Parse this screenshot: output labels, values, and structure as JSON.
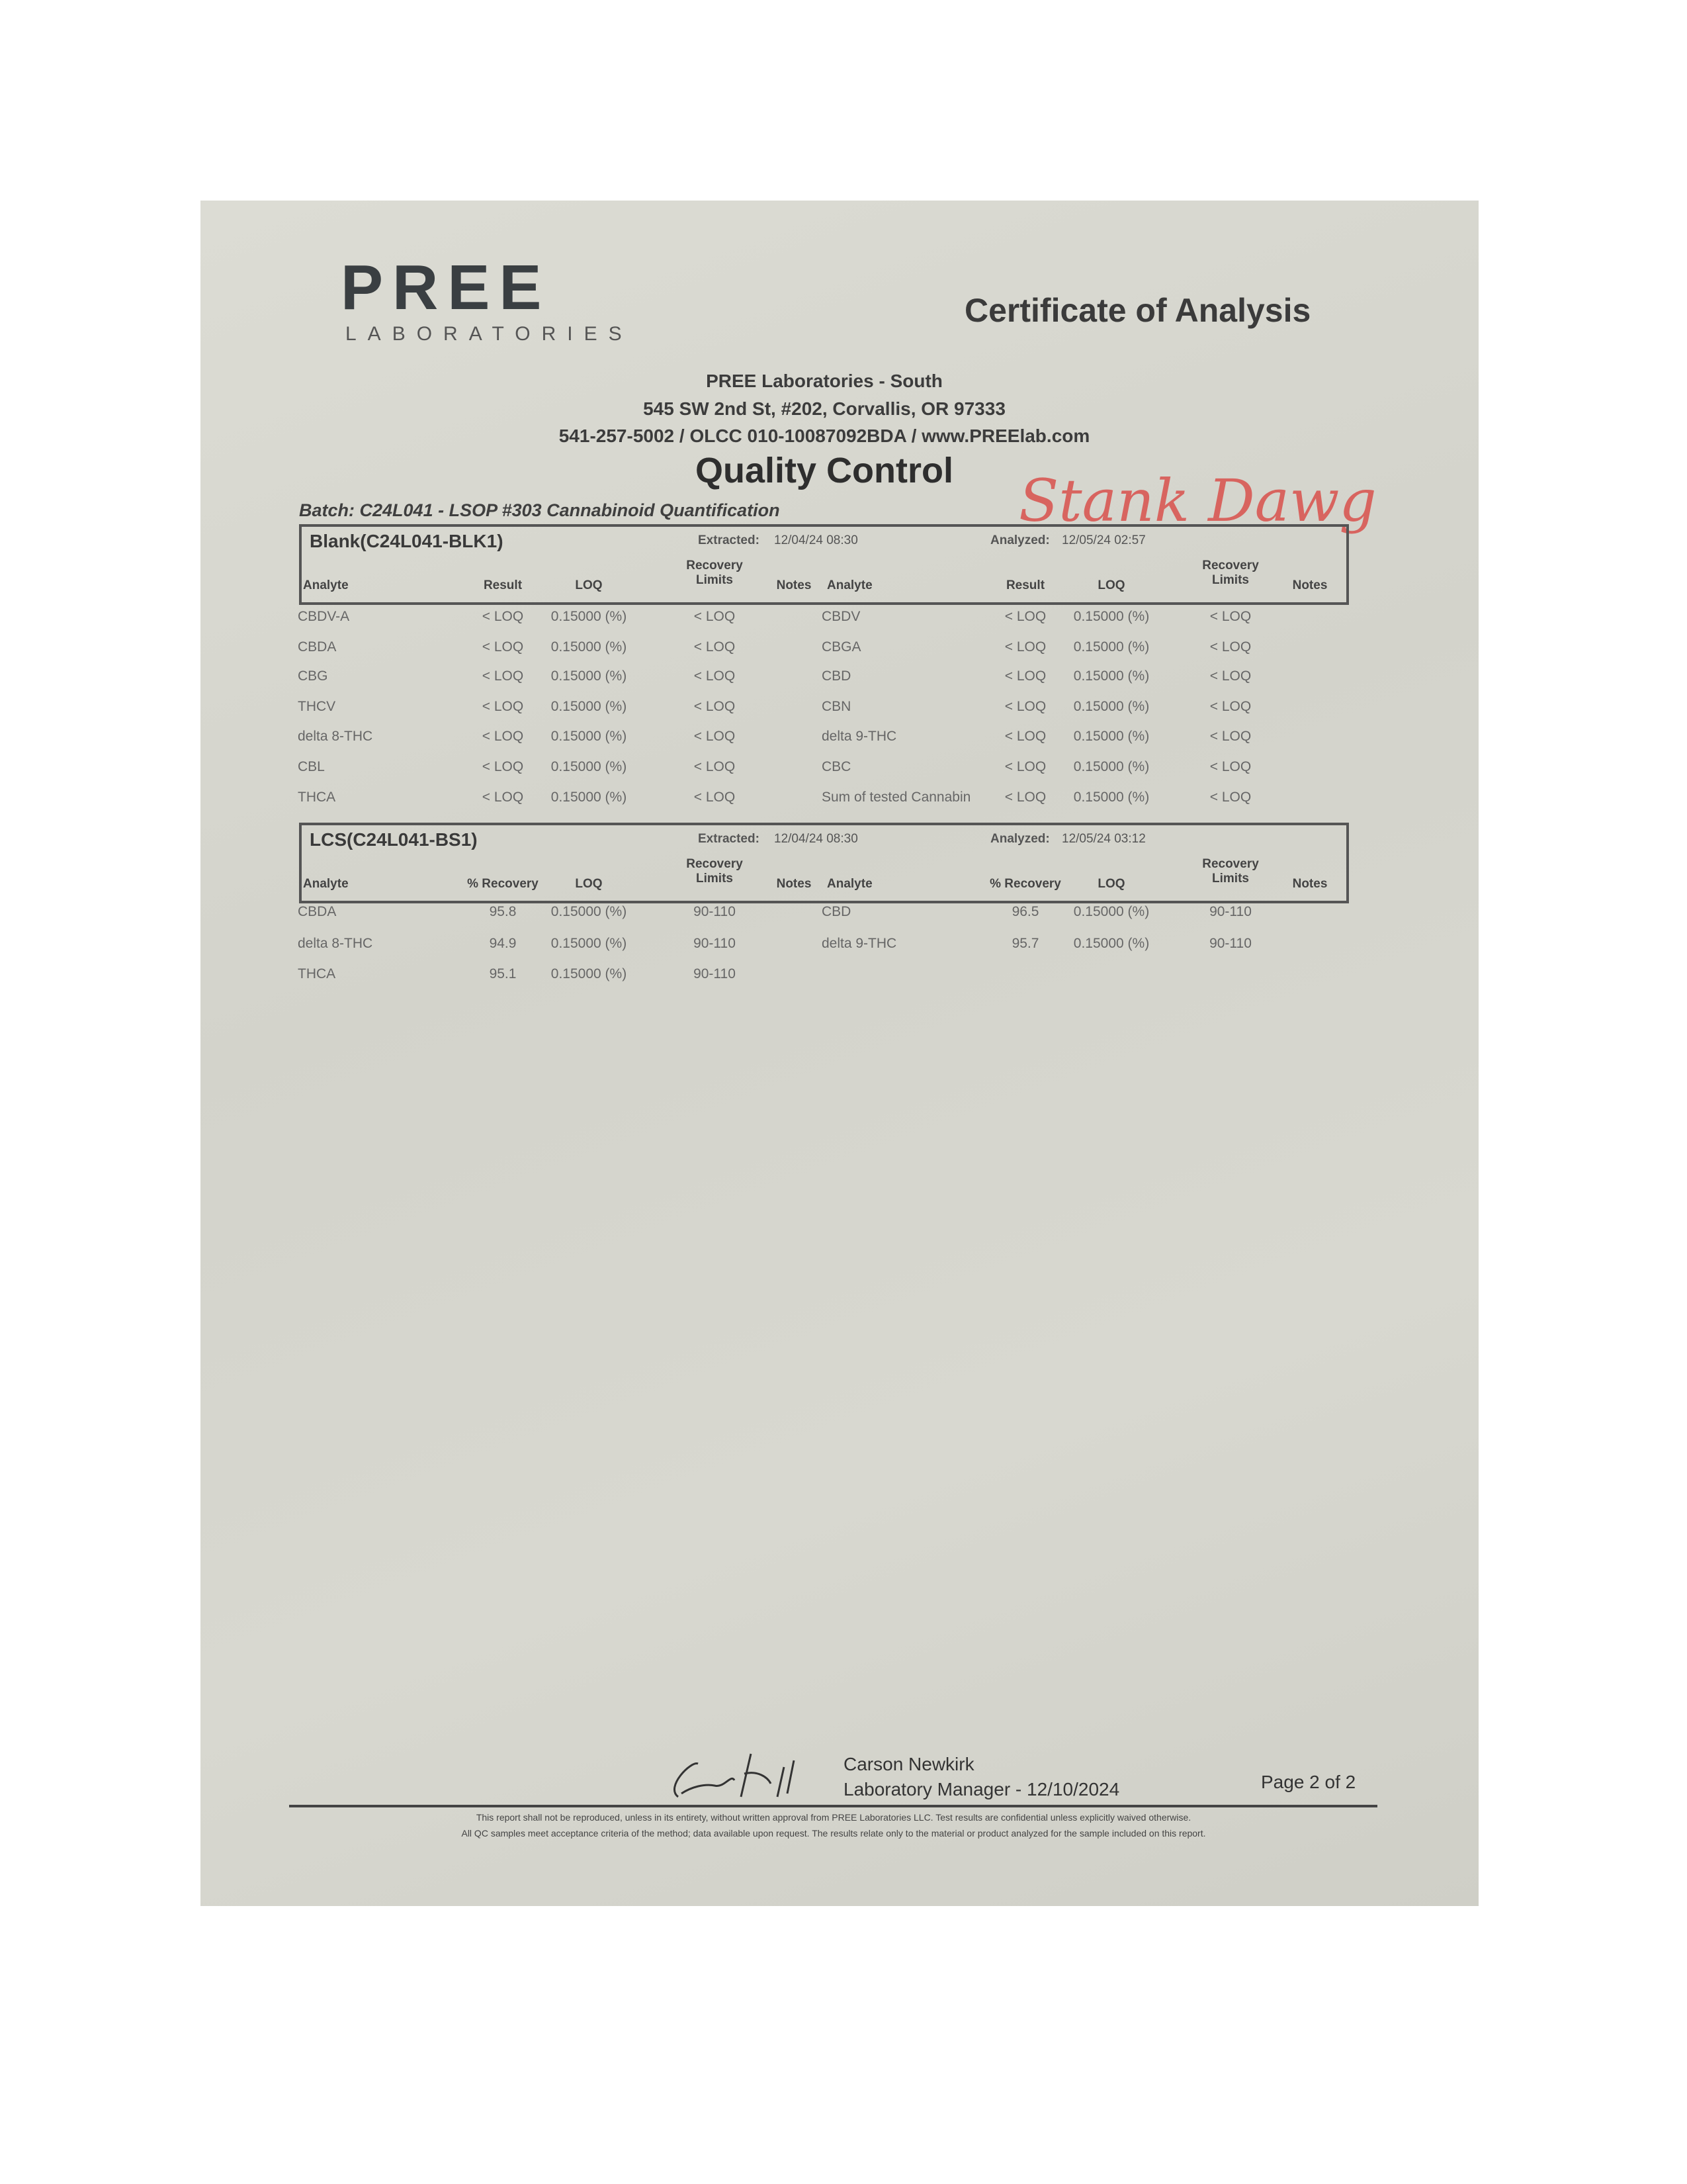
{
  "header": {
    "logo": "PREE",
    "logo_sub": "LABORATORIES",
    "doc_title": "Certificate of Analysis",
    "lab_name": "PREE Laboratories - South",
    "address": "545 SW 2nd St, #202, Corvallis, OR 97333",
    "contact": "541-257-5002 / OLCC 010-10087092BDA / www.PREElab.com",
    "section_title": "Quality Control",
    "batch": "Batch:  C24L041 - LSOP #303 Cannabinoid Quantification",
    "handwritten_note": "Stank Dawg"
  },
  "blank": {
    "name": "Blank(C24L041-BLK1)",
    "extracted": "Extracted:",
    "extracted_val": "12/04/24 08:30",
    "analyzed": "Analyzed:",
    "analyzed_val": "12/05/24 02:57",
    "headers": [
      "Analyte",
      "Result",
      "LOQ",
      "Recovery Limits",
      "Notes",
      "Analyte",
      "Result",
      "LOQ",
      "Recovery Limits",
      "Notes"
    ],
    "rows": [
      [
        "CBDV-A",
        "< LOQ",
        "0.15000 (%)",
        "< LOQ",
        "",
        "CBDV",
        "< LOQ",
        "0.15000 (%)",
        "< LOQ",
        ""
      ],
      [
        "CBDA",
        "< LOQ",
        "0.15000 (%)",
        "< LOQ",
        "",
        "CBGA",
        "< LOQ",
        "0.15000 (%)",
        "< LOQ",
        ""
      ],
      [
        "CBG",
        "< LOQ",
        "0.15000 (%)",
        "< LOQ",
        "",
        "CBD",
        "< LOQ",
        "0.15000 (%)",
        "< LOQ",
        ""
      ],
      [
        "THCV",
        "< LOQ",
        "0.15000 (%)",
        "< LOQ",
        "",
        "CBN",
        "< LOQ",
        "0.15000 (%)",
        "< LOQ",
        ""
      ],
      [
        "delta 8-THC",
        "< LOQ",
        "0.15000 (%)",
        "< LOQ",
        "",
        "delta 9-THC",
        "< LOQ",
        "0.15000 (%)",
        "< LOQ",
        ""
      ],
      [
        "CBL",
        "< LOQ",
        "0.15000 (%)",
        "< LOQ",
        "",
        "CBC",
        "< LOQ",
        "0.15000 (%)",
        "< LOQ",
        ""
      ],
      [
        "THCA",
        "< LOQ",
        "0.15000 (%)",
        "< LOQ",
        "",
        "Sum of tested Cannabin",
        "< LOQ",
        "0.15000 (%)",
        "< LOQ",
        ""
      ]
    ]
  },
  "lcs": {
    "name": "LCS(C24L041-BS1)",
    "extracted": "Extracted:",
    "extracted_val": "12/04/24 08:30",
    "analyzed": "Analyzed:",
    "analyzed_val": "12/05/24 03:12",
    "headers": [
      "Analyte",
      "% Recovery",
      "LOQ",
      "Recovery Limits",
      "Notes",
      "Analyte",
      "% Recovery",
      "LOQ",
      "Recovery Limits",
      "Notes"
    ],
    "rows": [
      [
        "CBDA",
        "95.8",
        "0.15000 (%)",
        "90-110",
        "",
        "CBD",
        "96.5",
        "0.15000 (%)",
        "90-110",
        ""
      ],
      [
        "delta 8-THC",
        "94.9",
        "0.15000 (%)",
        "90-110",
        "",
        "delta 9-THC",
        "95.7",
        "0.15000 (%)",
        "90-110",
        ""
      ],
      [
        "THCA",
        "95.1",
        "0.15000 (%)",
        "90-110",
        "",
        "",
        "",
        "",
        "",
        ""
      ]
    ]
  },
  "footer": {
    "signer": "Carson Newkirk",
    "signer_title": "Laboratory Manager - 12/10/2024",
    "page": "Page 2 of 2",
    "disclaimer1": "This report shall not be reproduced, unless in its entirety, without written approval from PREE Laboratories LLC. Test results are confidential unless explicitly waived otherwise.",
    "disclaimer2": "All QC samples meet acceptance criteria of the method; data available upon request. The results relate only to the material or product analyzed for the sample included on this report."
  }
}
